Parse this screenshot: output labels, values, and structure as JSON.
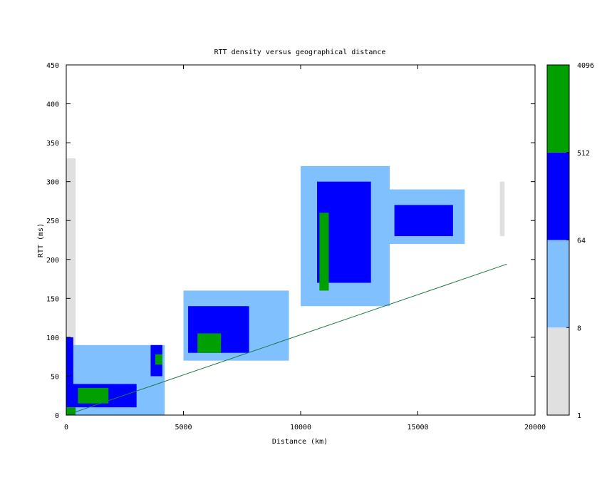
{
  "chart_data": {
    "type": "heatmap",
    "title": "RTT density versus geographical distance",
    "xlabel": "Distance (km)",
    "ylabel": "RTT (ms)",
    "xlim": [
      0,
      20000
    ],
    "ylim": [
      0,
      450
    ],
    "x_ticks": [
      0,
      5000,
      10000,
      15000,
      20000
    ],
    "y_ticks": [
      0,
      50,
      100,
      150,
      200,
      250,
      300,
      350,
      400,
      450
    ],
    "color_scale": {
      "type": "log2-binned",
      "bins": [
        {
          "from": 1,
          "to": 8,
          "color": "#e0e0e0"
        },
        {
          "from": 8,
          "to": 64,
          "color": "#80c0ff"
        },
        {
          "from": 64,
          "to": 512,
          "color": "#0000ff"
        },
        {
          "from": 512,
          "to": 4096,
          "color": "#00a000"
        }
      ],
      "tick_labels": [
        "1",
        "8",
        "64",
        "512",
        "4096"
      ]
    },
    "reference_line": {
      "color": "#1a7a40",
      "points": [
        [
          0,
          0
        ],
        [
          18800,
          194
        ]
      ]
    },
    "density_regions": [
      {
        "x": [
          0,
          400
        ],
        "y": [
          0,
          10
        ],
        "level": 3
      },
      {
        "x": [
          0,
          4200
        ],
        "y": [
          0,
          90
        ],
        "level": 1
      },
      {
        "x": [
          0,
          3000
        ],
        "y": [
          10,
          40
        ],
        "level": 2
      },
      {
        "x": [
          0,
          300
        ],
        "y": [
          20,
          100
        ],
        "level": 2
      },
      {
        "x": [
          500,
          1800
        ],
        "y": [
          15,
          35
        ],
        "level": 3
      },
      {
        "x": [
          3600,
          4100
        ],
        "y": [
          50,
          90
        ],
        "level": 2
      },
      {
        "x": [
          3800,
          4100
        ],
        "y": [
          65,
          78
        ],
        "level": 3
      },
      {
        "x": [
          0,
          400
        ],
        "y": [
          90,
          330
        ],
        "level": 0
      },
      {
        "x": [
          5000,
          9500
        ],
        "y": [
          70,
          160
        ],
        "level": 1
      },
      {
        "x": [
          5200,
          7800
        ],
        "y": [
          80,
          140
        ],
        "level": 2
      },
      {
        "x": [
          5600,
          6600
        ],
        "y": [
          80,
          105
        ],
        "level": 3
      },
      {
        "x": [
          10000,
          13800
        ],
        "y": [
          140,
          320
        ],
        "level": 1
      },
      {
        "x": [
          10700,
          13000
        ],
        "y": [
          170,
          300
        ],
        "level": 2
      },
      {
        "x": [
          10800,
          11200
        ],
        "y": [
          160,
          260
        ],
        "level": 3
      },
      {
        "x": [
          13000,
          17000
        ],
        "y": [
          220,
          290
        ],
        "level": 1
      },
      {
        "x": [
          14000,
          16500
        ],
        "y": [
          230,
          270
        ],
        "level": 2
      },
      {
        "x": [
          18500,
          18700
        ],
        "y": [
          230,
          300
        ],
        "level": 0
      }
    ]
  }
}
